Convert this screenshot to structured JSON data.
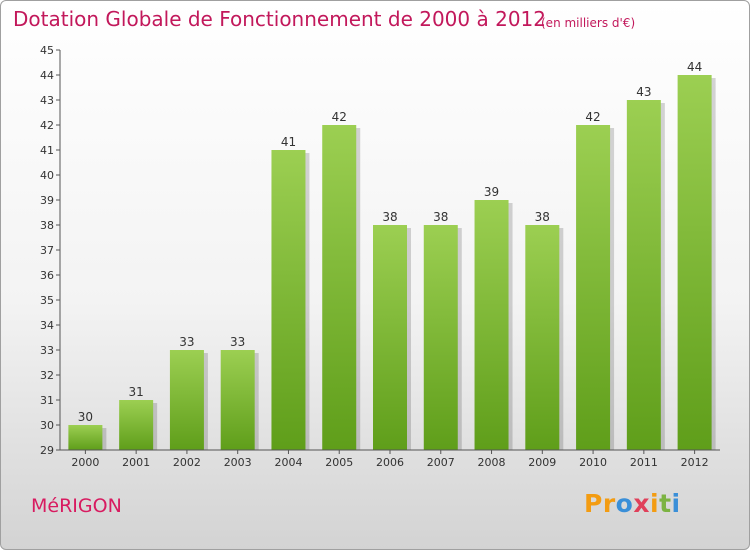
{
  "header": {
    "title": "Dotation Globale de Fonctionnement de 2000 à 2012",
    "subtitle": "(en milliers d'€)"
  },
  "footer": {
    "commune": "MéRIGON",
    "logo_parts": [
      "Pr",
      "o",
      "x",
      "i",
      "t",
      "i"
    ]
  },
  "colors": {
    "title": "#c2185b",
    "bar_top": "#9ccf52",
    "bar_bottom": "#5f9e1a",
    "axis": "#555555"
  },
  "chart_data": {
    "type": "bar",
    "categories": [
      "2000",
      "2001",
      "2002",
      "2003",
      "2004",
      "2005",
      "2006",
      "2007",
      "2008",
      "2009",
      "2010",
      "2011",
      "2012"
    ],
    "values": [
      30,
      31,
      33,
      33,
      41,
      42,
      38,
      38,
      39,
      38,
      42,
      43,
      44
    ],
    "title": "Dotation Globale de Fonctionnement de 2000 à 2012",
    "subtitle": "(en milliers d'€)",
    "ylim": [
      29,
      45
    ],
    "yticks": [
      29,
      30,
      31,
      32,
      33,
      34,
      35,
      36,
      37,
      38,
      39,
      40,
      41,
      42,
      43,
      44,
      45
    ],
    "grid": false,
    "legend": "none",
    "data_labels": true
  }
}
